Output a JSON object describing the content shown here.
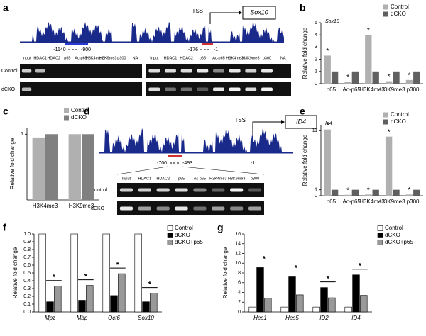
{
  "panel_labels": [
    "a",
    "b",
    "c",
    "d",
    "e",
    "f",
    "g"
  ],
  "sox10_track": {
    "tss": "TSS",
    "gene": "Sox10",
    "coords": [
      "-1140",
      "-900",
      "-176",
      "-1"
    ],
    "lanes_left": [
      "Input",
      "HDAC1",
      "HDAC2",
      "p65",
      "Ac-p65",
      "H3K4me3",
      "H3K9me3",
      "p300",
      "NA"
    ],
    "lanes_right": [
      "Input",
      "HDAC1",
      "HDAC2",
      "p65",
      "Ac-p65",
      "H3K4me3",
      "H3K9me3",
      "p300",
      "NA"
    ],
    "rows": [
      "Control",
      "dCKO"
    ]
  },
  "id4_track": {
    "tss": "TSS",
    "gene": "ID4",
    "coords": [
      "-700",
      "-493",
      "-1"
    ],
    "lanes": [
      "Input",
      "HDAC1",
      "HDAC2",
      "p65",
      "Ac-p65",
      "H3K4me3",
      "H3K9me3",
      "p300"
    ],
    "rows": [
      "Control",
      "dCKO"
    ]
  },
  "chart_data": [
    {
      "type": "bar",
      "subtitle": "Sox10",
      "y_label": "Relative fold change",
      "categories": [
        "p65",
        "Ac-p65",
        "H3K4me3",
        "H3K9me3",
        "p300"
      ],
      "series": [
        {
          "name": "Control",
          "color": "#b0b0b0",
          "values": [
            2.3,
            0.15,
            4.0,
            0.2,
            0.3
          ]
        },
        {
          "name": "dCKO",
          "color": "#606060",
          "values": [
            1,
            1,
            1,
            1,
            1
          ]
        }
      ],
      "significance": [
        "*",
        "*",
        "*",
        "*",
        "*"
      ],
      "ylim": [
        0,
        5
      ],
      "yticks": [
        0,
        1,
        2,
        3,
        4,
        5
      ]
    },
    {
      "type": "bar",
      "y_label": "Relative fold change",
      "categories": [
        "H3K4me3",
        "H3K9me3"
      ],
      "series": [
        {
          "name": "Control",
          "color": "#b0b0b0",
          "values": [
            0.95,
            1.0
          ]
        },
        {
          "name": "dCKO",
          "color": "#808080",
          "values": [
            1,
            1
          ]
        }
      ],
      "ylim": [
        0,
        1.1
      ],
      "yticks": [
        1
      ]
    },
    {
      "type": "bar",
      "subtitle": "Id4",
      "y_label": "Relative fold change",
      "categories": [
        "p65",
        "Ac-p65",
        "H3K4me3",
        "H3K9me3",
        "p300"
      ],
      "series": [
        {
          "name": "Control",
          "color": "#b0b0b0",
          "values": [
            11.2,
            0.15,
            0.2,
            10.0,
            0.2
          ]
        },
        {
          "name": "dCKO",
          "color": "#606060",
          "values": [
            1,
            1,
            1,
            1,
            1
          ]
        }
      ],
      "significance": [
        "*",
        "*",
        "*",
        "*",
        "*"
      ],
      "ylim": [
        0,
        12
      ],
      "yticks": [
        0,
        1,
        11
      ]
    },
    {
      "type": "bar",
      "y_label": "Relative fold change",
      "category_style": "italic",
      "bracket": true,
      "categories": [
        "Mpz",
        "Mbp",
        "Oct6",
        "Sox10"
      ],
      "series": [
        {
          "name": "Control",
          "color": "#ffffff",
          "values": [
            1.0,
            1.0,
            1.0,
            1.0
          ]
        },
        {
          "name": "dCKO",
          "color": "#000000",
          "values": [
            0.13,
            0.15,
            0.21,
            0.13
          ]
        },
        {
          "name": "dCKO+p65",
          "color": "#999999",
          "values": [
            0.33,
            0.34,
            0.49,
            0.24
          ]
        }
      ],
      "significance": [
        "*",
        "*",
        "*",
        "*"
      ],
      "ylim": [
        0,
        1.0
      ],
      "yticks": [
        {
          "value": 0,
          "label": "0.0"
        },
        0.1,
        0.2,
        0.3,
        0.4,
        0.5,
        0.6,
        0.7,
        0.8,
        0.9,
        {
          "value": 1,
          "label": "1.0"
        }
      ]
    },
    {
      "type": "bar",
      "y_label": "Relative fold change",
      "category_style": "italic",
      "bracket": true,
      "categories": [
        "Hes1",
        "Hes5",
        "ID2",
        "ID4"
      ],
      "series": [
        {
          "name": "Control",
          "color": "#ffffff",
          "values": [
            1,
            1,
            1,
            1
          ]
        },
        {
          "name": "dCKO",
          "color": "#000000",
          "values": [
            9.1,
            7.2,
            5.0,
            7.6
          ]
        },
        {
          "name": "dCKO+p65",
          "color": "#999999",
          "values": [
            2.8,
            3.5,
            2.9,
            3.4
          ]
        }
      ],
      "significance": [
        "*",
        "*",
        "*",
        "*"
      ],
      "ylim": [
        0,
        16
      ],
      "yticks": [
        0,
        2,
        4,
        6,
        8,
        10,
        12,
        14,
        16
      ]
    }
  ]
}
